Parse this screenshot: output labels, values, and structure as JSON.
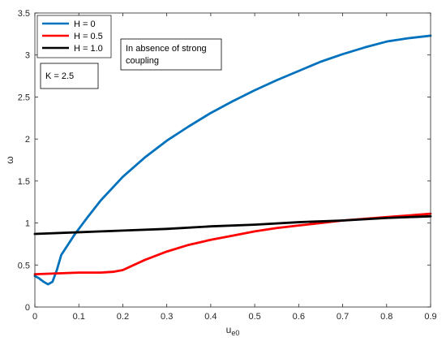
{
  "chart_data": {
    "type": "line",
    "xlabel_main": "u",
    "xlabel_sub": "e0",
    "ylabel": "ω",
    "xlim": [
      0,
      0.9
    ],
    "ylim": [
      0,
      3.5
    ],
    "xticks": [
      0,
      0.1,
      0.2,
      0.3,
      0.4,
      0.5,
      0.6,
      0.7,
      0.8,
      0.9
    ],
    "xtick_labels": [
      "0",
      "0.1",
      "0.2",
      "0.3",
      "0.4",
      "0.5",
      "0.6",
      "0.7",
      "0.8",
      "0.9"
    ],
    "yticks": [
      0,
      0.5,
      1,
      1.5,
      2,
      2.5,
      3,
      3.5
    ],
    "ytick_labels": [
      "0",
      "0.5",
      "1",
      "1.5",
      "2",
      "2.5",
      "3",
      "3.5"
    ],
    "grid": false,
    "legend_position": "top-left",
    "series": [
      {
        "name": "H = 0",
        "color": "#0072BD",
        "x": [
          0,
          0.01,
          0.02,
          0.03,
          0.04,
          0.05,
          0.06,
          0.07,
          0.08,
          0.09,
          0.1,
          0.12,
          0.15,
          0.2,
          0.25,
          0.3,
          0.35,
          0.4,
          0.45,
          0.5,
          0.55,
          0.6,
          0.65,
          0.7,
          0.75,
          0.8,
          0.85,
          0.9
        ],
        "y": [
          0.37,
          0.34,
          0.3,
          0.27,
          0.3,
          0.44,
          0.62,
          0.7,
          0.78,
          0.86,
          0.93,
          1.07,
          1.27,
          1.55,
          1.78,
          1.98,
          2.15,
          2.31,
          2.45,
          2.58,
          2.7,
          2.81,
          2.92,
          3.01,
          3.09,
          3.16,
          3.2,
          3.23
        ]
      },
      {
        "name": "H = 0.5",
        "color": "#FF0000",
        "x": [
          0,
          0.05,
          0.1,
          0.15,
          0.18,
          0.2,
          0.25,
          0.3,
          0.35,
          0.4,
          0.45,
          0.5,
          0.55,
          0.6,
          0.65,
          0.7,
          0.75,
          0.8,
          0.85,
          0.9
        ],
        "y": [
          0.39,
          0.4,
          0.41,
          0.41,
          0.42,
          0.44,
          0.56,
          0.66,
          0.74,
          0.8,
          0.85,
          0.9,
          0.94,
          0.97,
          1.0,
          1.03,
          1.05,
          1.07,
          1.09,
          1.11
        ]
      },
      {
        "name": "H = 1.0",
        "color": "#000000",
        "x": [
          0,
          0.1,
          0.2,
          0.3,
          0.4,
          0.5,
          0.6,
          0.7,
          0.8,
          0.9
        ],
        "y": [
          0.87,
          0.89,
          0.91,
          0.93,
          0.96,
          0.98,
          1.01,
          1.03,
          1.06,
          1.08
        ]
      }
    ],
    "annotations": {
      "k_box": "K = 2.5",
      "note_line1": "In absence of strong",
      "note_line2": "coupling"
    }
  }
}
